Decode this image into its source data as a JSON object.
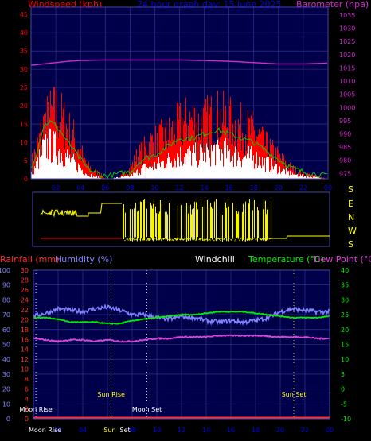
{
  "header": {
    "top_left": "Windspeed (kph)",
    "top_center": "24 hour graph day: 15 June 2025",
    "top_right": "Barometer (hpa)",
    "mid_rainfall": "Rainfall (mm)",
    "mid_humidity": "Humidity (%)",
    "mid_windchill": "Windchill",
    "mid_temperature": "Temperature (°C)",
    "mid_dewpoint": "Dew Point (°C)"
  },
  "colors": {
    "windspeed_text": "#ff0000",
    "gust": "#ff0000",
    "average": "#ffffff",
    "barometer": "#d02ad0",
    "title": "#0000ff",
    "direction": "#ffff00",
    "humidity": "#8080ff",
    "temperature": "#00ee00",
    "dewpoint": "#dd44dd",
    "rainfall": "#ff3030",
    "axis": "#4444aa",
    "grid": "#3a3a9a",
    "plot_bg": "#00004a",
    "sun": "#ffff00",
    "moon": "#ffffff"
  },
  "chart_data": [
    {
      "type": "area",
      "id": "wind",
      "x_ticks": [
        "02",
        "04",
        "06",
        "08",
        "10",
        "12",
        "14",
        "16",
        "18",
        "20",
        "22",
        "00"
      ],
      "y_left_ticks": [
        0,
        5,
        10,
        15,
        20,
        25,
        30,
        35,
        40,
        45
      ],
      "ylim_left": [
        0,
        47
      ],
      "y_right_ticks": [
        975,
        980,
        985,
        990,
        995,
        1000,
        1005,
        1010,
        1015,
        1020,
        1025,
        1030,
        1035
      ],
      "ylim_right": [
        973,
        1038
      ],
      "gust_kph": [
        [
          0.0,
          6
        ],
        [
          0.5,
          12
        ],
        [
          1.0,
          20
        ],
        [
          1.5,
          23
        ],
        [
          2.0,
          25
        ],
        [
          2.5,
          22
        ],
        [
          3.0,
          18
        ],
        [
          3.5,
          15
        ],
        [
          4.0,
          10
        ],
        [
          4.5,
          5
        ],
        [
          5.0,
          3
        ],
        [
          5.5,
          2
        ],
        [
          6.0,
          0
        ],
        [
          7.0,
          0
        ],
        [
          8.0,
          4
        ],
        [
          8.5,
          8
        ],
        [
          9.0,
          10
        ],
        [
          9.5,
          13
        ],
        [
          10.0,
          14
        ],
        [
          10.5,
          15
        ],
        [
          11.0,
          16
        ],
        [
          11.5,
          18
        ],
        [
          12.0,
          20
        ],
        [
          12.5,
          21
        ],
        [
          13.0,
          22
        ],
        [
          13.5,
          20
        ],
        [
          14.0,
          21
        ],
        [
          14.5,
          22
        ],
        [
          15.0,
          23
        ],
        [
          15.5,
          22
        ],
        [
          16.0,
          21
        ],
        [
          16.5,
          20
        ],
        [
          17.0,
          19
        ],
        [
          17.5,
          18
        ],
        [
          18.0,
          17
        ],
        [
          18.5,
          15
        ],
        [
          19.0,
          12
        ],
        [
          19.5,
          10
        ],
        [
          20.0,
          8
        ],
        [
          20.5,
          6
        ],
        [
          21.0,
          4
        ],
        [
          21.5,
          3
        ],
        [
          22.0,
          2
        ],
        [
          23.0,
          1
        ],
        [
          24.0,
          0
        ]
      ],
      "average_kph": [
        [
          0.0,
          2
        ],
        [
          0.5,
          6
        ],
        [
          1.0,
          12
        ],
        [
          1.5,
          13
        ],
        [
          2.0,
          12
        ],
        [
          2.5,
          10
        ],
        [
          3.0,
          8
        ],
        [
          3.5,
          6
        ],
        [
          4.0,
          4
        ],
        [
          4.5,
          2
        ],
        [
          5.0,
          1
        ],
        [
          6.0,
          0
        ],
        [
          8.0,
          1
        ],
        [
          9.0,
          4
        ],
        [
          10.0,
          5
        ],
        [
          11.0,
          7
        ],
        [
          12.0,
          9
        ],
        [
          13.0,
          9
        ],
        [
          14.0,
          10
        ],
        [
          15.0,
          11
        ],
        [
          16.0,
          10
        ],
        [
          17.0,
          9
        ],
        [
          18.0,
          8
        ],
        [
          19.0,
          6
        ],
        [
          20.0,
          4
        ],
        [
          21.0,
          2
        ],
        [
          22.0,
          1
        ],
        [
          24.0,
          0
        ]
      ],
      "barometer_hpa": [
        [
          0.0,
          1016
        ],
        [
          1.0,
          1016.5
        ],
        [
          2.0,
          1017
        ],
        [
          3.0,
          1017.5
        ],
        [
          4.0,
          1017.8
        ],
        [
          6.0,
          1018
        ],
        [
          8.0,
          1018
        ],
        [
          10.0,
          1018
        ],
        [
          12.0,
          1018
        ],
        [
          14.0,
          1017.8
        ],
        [
          16.0,
          1017.5
        ],
        [
          18.0,
          1017
        ],
        [
          20.0,
          1016.5
        ],
        [
          22.0,
          1016.5
        ],
        [
          24.0,
          1016.8
        ]
      ]
    },
    {
      "type": "line",
      "id": "direction",
      "y_right_labels": [
        "S",
        "E",
        "N",
        "W",
        "S"
      ],
      "direction": [
        [
          0.0,
          "S"
        ],
        [
          3.5,
          "S"
        ],
        [
          4.0,
          "E"
        ],
        [
          6.0,
          "E"
        ],
        [
          7.0,
          "N"
        ],
        [
          8.0,
          "N"
        ],
        [
          8.2,
          "S"
        ],
        [
          24.0,
          "S"
        ]
      ]
    },
    {
      "type": "line",
      "id": "temperature",
      "x_ticks": [
        "02",
        "04",
        "06",
        "08",
        "10",
        "12",
        "14",
        "16",
        "18",
        "20",
        "22",
        "00"
      ],
      "y_humidity_ticks": [
        0,
        10,
        20,
        30,
        40,
        50,
        60,
        70,
        80,
        90,
        100
      ],
      "y_rainfall_ticks": [
        0,
        2,
        4,
        6,
        8,
        10,
        12,
        14,
        16,
        18,
        20,
        22,
        24,
        26,
        28,
        30
      ],
      "y_temp_ticks": [
        -10,
        -5,
        0,
        5,
        10,
        15,
        20,
        25,
        30,
        35,
        40
      ],
      "ylim_humidity": [
        0,
        100
      ],
      "ylim_temp": [
        -10,
        40
      ],
      "humidity": [
        [
          0.0,
          69
        ],
        [
          1.0,
          71
        ],
        [
          2.0,
          74
        ],
        [
          3.0,
          73
        ],
        [
          4.0,
          72
        ],
        [
          5.0,
          74
        ],
        [
          6.0,
          75
        ],
        [
          7.0,
          73
        ],
        [
          8.0,
          70
        ],
        [
          9.0,
          70
        ],
        [
          10.0,
          68
        ],
        [
          11.0,
          67
        ],
        [
          12.0,
          69
        ],
        [
          13.0,
          68
        ],
        [
          14.0,
          66
        ],
        [
          15.0,
          65
        ],
        [
          16.0,
          66
        ],
        [
          17.0,
          65
        ],
        [
          18.0,
          66
        ],
        [
          19.0,
          68
        ],
        [
          20.0,
          72
        ],
        [
          21.0,
          74
        ],
        [
          22.0,
          73
        ],
        [
          23.0,
          72
        ],
        [
          24.0,
          72
        ]
      ],
      "temperature": [
        [
          0.0,
          24
        ],
        [
          1.0,
          24
        ],
        [
          2.0,
          23.5
        ],
        [
          3.0,
          22.5
        ],
        [
          4.0,
          22.5
        ],
        [
          5.0,
          22.5
        ],
        [
          6.0,
          22
        ],
        [
          7.0,
          22
        ],
        [
          8.0,
          23
        ],
        [
          9.0,
          23.5
        ],
        [
          10.0,
          24
        ],
        [
          11.0,
          24.5
        ],
        [
          12.0,
          25
        ],
        [
          13.0,
          25
        ],
        [
          14.0,
          25.5
        ],
        [
          15.0,
          26
        ],
        [
          16.0,
          26
        ],
        [
          17.0,
          26
        ],
        [
          18.0,
          25.5
        ],
        [
          19.0,
          25
        ],
        [
          20.0,
          24.5
        ],
        [
          21.0,
          24
        ],
        [
          22.0,
          24
        ],
        [
          23.0,
          24
        ],
        [
          24.0,
          24.5
        ]
      ],
      "dew_point": [
        [
          0.0,
          17
        ],
        [
          1.0,
          16.5
        ],
        [
          2.0,
          16
        ],
        [
          3.0,
          16.5
        ],
        [
          4.0,
          16.5
        ],
        [
          5.0,
          16
        ],
        [
          6.0,
          16.5
        ],
        [
          7.0,
          16
        ],
        [
          8.0,
          16
        ],
        [
          9.0,
          16.5
        ],
        [
          10.0,
          17
        ],
        [
          11.0,
          17
        ],
        [
          12.0,
          17.5
        ],
        [
          13.0,
          17.5
        ],
        [
          14.0,
          17.5
        ],
        [
          15.0,
          18
        ],
        [
          16.0,
          18
        ],
        [
          17.0,
          18
        ],
        [
          18.0,
          18
        ],
        [
          19.0,
          17.8
        ],
        [
          20.0,
          17.5
        ],
        [
          21.0,
          17.5
        ],
        [
          22.0,
          17.5
        ],
        [
          23.0,
          17
        ],
        [
          24.0,
          17
        ]
      ],
      "rainfall_mm": [
        [
          0.0,
          0
        ],
        [
          24.0,
          0
        ]
      ],
      "events": [
        {
          "label": "Moon Rise",
          "hour": 0.2,
          "color_key": "moon",
          "row": 0
        },
        {
          "label": "Sun Rise",
          "hour": 6.3,
          "color_key": "sun",
          "row": 1
        },
        {
          "label": "Moon Set",
          "hour": 9.2,
          "color_key": "moon",
          "row": 0
        },
        {
          "label": "Sun Set",
          "hour": 21.1,
          "color_key": "sun",
          "row": 1
        }
      ],
      "bottom_labels": [
        {
          "label": "Moon Rise",
          "hour": 0.0,
          "color_key": "moon"
        },
        {
          "label": "Sun",
          "hour": 5.7,
          "color_key": "sun"
        },
        {
          "label": "Set",
          "hour": 7.0,
          "color_key": "moon"
        }
      ]
    }
  ]
}
